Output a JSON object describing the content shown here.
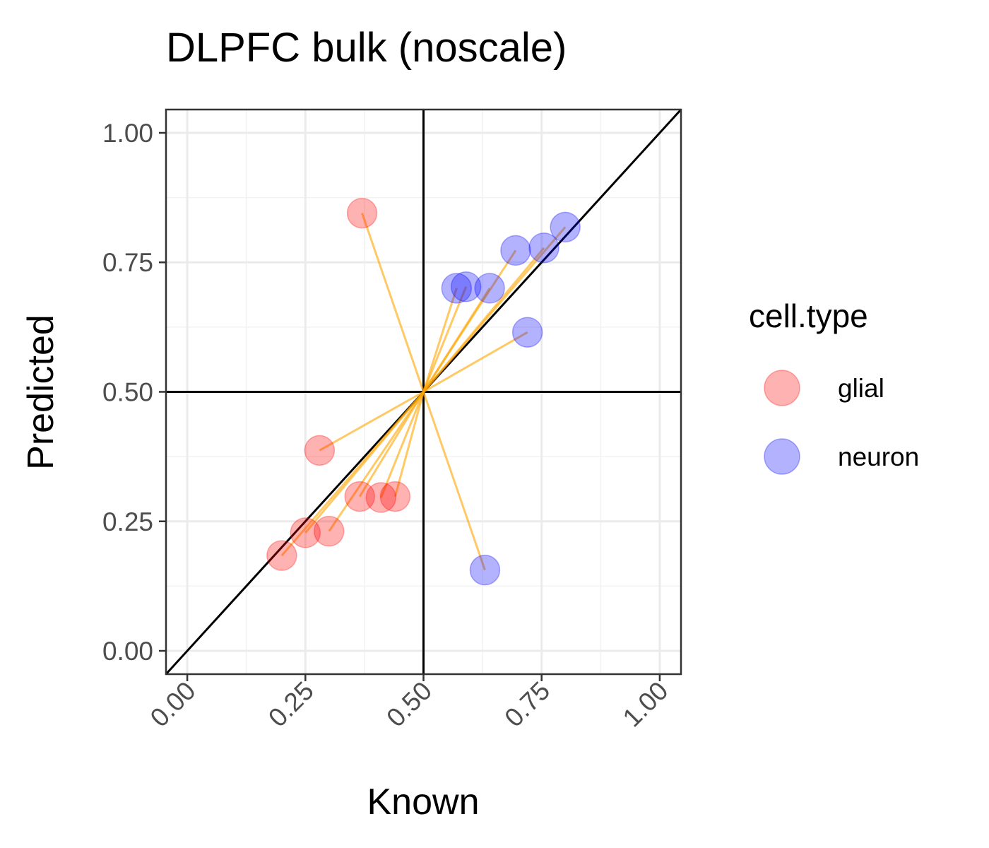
{
  "chart_data": {
    "type": "scatter",
    "title": "DLPFC bulk (noscale)",
    "xlabel": "Known",
    "ylabel": "Predicted",
    "xlim": [
      -0.045,
      1.045
    ],
    "ylim": [
      -0.045,
      1.045
    ],
    "x_ticks": [
      "0.00",
      "0.25",
      "0.50",
      "0.75",
      "1.00"
    ],
    "y_ticks": [
      "0.00",
      "0.25",
      "0.50",
      "0.75",
      "1.00"
    ],
    "grid": true,
    "center": [
      0.5,
      0.5
    ],
    "reference_lines": [
      "y = x",
      "x = 0.5",
      "y = 0.5"
    ],
    "segment_color": "#ffa500",
    "legend": {
      "title": "cell.type",
      "position": "right"
    },
    "series": [
      {
        "name": "glial",
        "color": "#ff0000",
        "points": [
          {
            "x": 0.37,
            "y": 0.845
          },
          {
            "x": 0.28,
            "y": 0.387
          },
          {
            "x": 0.365,
            "y": 0.298
          },
          {
            "x": 0.41,
            "y": 0.296
          },
          {
            "x": 0.44,
            "y": 0.298
          },
          {
            "x": 0.25,
            "y": 0.228
          },
          {
            "x": 0.3,
            "y": 0.231
          },
          {
            "x": 0.2,
            "y": 0.184
          }
        ]
      },
      {
        "name": "neuron",
        "color": "#0000ff",
        "points": [
          {
            "x": 0.8,
            "y": 0.818
          },
          {
            "x": 0.755,
            "y": 0.778
          },
          {
            "x": 0.695,
            "y": 0.773
          },
          {
            "x": 0.64,
            "y": 0.7
          },
          {
            "x": 0.57,
            "y": 0.7
          },
          {
            "x": 0.59,
            "y": 0.703
          },
          {
            "x": 0.72,
            "y": 0.615
          },
          {
            "x": 0.63,
            "y": 0.156
          }
        ]
      }
    ]
  }
}
